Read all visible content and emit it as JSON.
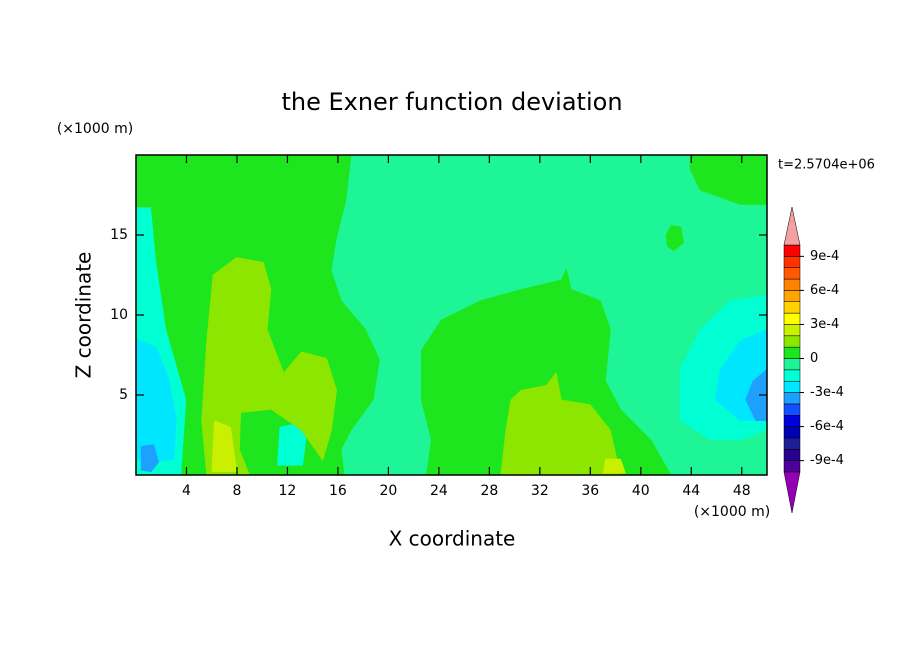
{
  "chart_data": {
    "type": "contour",
    "title": "the Exner function deviation",
    "x_label": "X coordinate",
    "y_label": "Z coordinate",
    "x_unit": "(×1000 m)",
    "y_unit": "(×1000 m)",
    "annotation": "t=2.5704e+06",
    "xlim": [
      0,
      50
    ],
    "ylim": [
      0,
      20
    ],
    "xticks": [
      4,
      8,
      12,
      16,
      20,
      24,
      28,
      32,
      36,
      40,
      44,
      48
    ],
    "yticks": [
      5,
      10,
      15
    ],
    "levels": [
      -0.001,
      -0.0009,
      -0.0008,
      -0.0007,
      -0.0006,
      -0.0005,
      -0.0004,
      -0.0003,
      -0.0002,
      -0.0001,
      0,
      0.0001,
      0.0002,
      0.0003,
      0.0004,
      0.0005,
      0.0006,
      0.0007,
      0.0008,
      0.0009,
      0.001
    ],
    "colors": [
      "#9600b4",
      "#50009a",
      "#28008c",
      "#1e1e96",
      "#0000b4",
      "#0000dc",
      "#1450ff",
      "#1ea0ff",
      "#00e6ff",
      "#00ffd2",
      "#1ef596",
      "#1ee61e",
      "#8ce600",
      "#c8f000",
      "#ffff00",
      "#ffd200",
      "#ffa500",
      "#ff8200",
      "#ff5a00",
      "#ff3200",
      "#ff0000",
      "#f4a0a0"
    ],
    "colorbar_ticks": [
      {
        "value": 0.0009,
        "label": "9e-4"
      },
      {
        "value": 0.0006,
        "label": "6e-4"
      },
      {
        "value": 0.0003,
        "label": "3e-4"
      },
      0,
      {
        "value": -0.0003,
        "label": "-3e-4"
      },
      {
        "value": -0.0006,
        "label": "-6e-4"
      },
      {
        "value": -0.0009,
        "label": "-9e-4"
      }
    ],
    "regions": [
      {
        "level": -0.0001,
        "points": [
          [
            0,
            0
          ],
          [
            50,
            0
          ],
          [
            50,
            20
          ],
          [
            0,
            20
          ]
        ]
      },
      {
        "level": -0.0002,
        "points": [
          [
            0,
            16.75
          ],
          [
            1.2,
            16.6
          ],
          [
            1.6,
            13.4
          ],
          [
            2.4,
            9.1
          ],
          [
            3.6,
            5.9
          ],
          [
            4.4,
            3.4
          ],
          [
            4.8,
            0
          ],
          [
            0,
            0
          ]
        ]
      },
      {
        "level": -0.0003,
        "points": [
          [
            0,
            8.5
          ],
          [
            1.6,
            8.0
          ],
          [
            2.6,
            6.0
          ],
          [
            3.2,
            3.5
          ],
          [
            3.0,
            1.0
          ],
          [
            1.5,
            0.8
          ],
          [
            0,
            1.0
          ]
        ]
      },
      {
        "level": -0.0004,
        "points": [
          [
            0.4,
            1.8
          ],
          [
            1.4,
            1.9
          ],
          [
            1.8,
            0.8
          ],
          [
            1.2,
            0.2
          ],
          [
            0.4,
            0.3
          ]
        ]
      },
      {
        "level": -0.0002,
        "points": [
          [
            50,
            11.25
          ],
          [
            47.1,
            10.9
          ],
          [
            44.7,
            9.1
          ],
          [
            43.1,
            6.6
          ],
          [
            43.1,
            3.4
          ],
          [
            45.5,
            2.2
          ],
          [
            47.9,
            2.2
          ],
          [
            50,
            2.8
          ]
        ]
      },
      {
        "level": -0.0003,
        "points": [
          [
            50,
            9.1
          ],
          [
            47.9,
            8.4
          ],
          [
            46.3,
            6.6
          ],
          [
            45.9,
            4.7
          ],
          [
            47.9,
            3.4
          ],
          [
            50,
            3.4
          ]
        ]
      },
      {
        "level": -0.0004,
        "points": [
          [
            50,
            6.6
          ],
          [
            48.9,
            5.9
          ],
          [
            48.3,
            4.7
          ],
          [
            49.1,
            3.4
          ],
          [
            50,
            3.4
          ]
        ]
      },
      {
        "level": 0,
        "points": [
          [
            0,
            20
          ],
          [
            17.05,
            20
          ],
          [
            16.65,
            17.2
          ],
          [
            15.86,
            14.7
          ],
          [
            15.47,
            12.8
          ],
          [
            16.26,
            10.9
          ],
          [
            18.2,
            9.1
          ],
          [
            19.3,
            7.2
          ],
          [
            18.8,
            4.7
          ],
          [
            17.05,
            2.8
          ],
          [
            16.26,
            1.6
          ],
          [
            16.5,
            0
          ],
          [
            3.6,
            0
          ],
          [
            4.0,
            4.7
          ],
          [
            2.4,
            9.1
          ],
          [
            1.6,
            13.4
          ],
          [
            1.2,
            16.75
          ],
          [
            0,
            16.75
          ]
        ]
      },
      {
        "level": 0,
        "points": [
          [
            22.6,
            7.8
          ],
          [
            24.2,
            9.7
          ],
          [
            27.3,
            10.9
          ],
          [
            30.5,
            11.6
          ],
          [
            33.7,
            12.2
          ],
          [
            34.1,
            12.9
          ],
          [
            34.5,
            11.6
          ],
          [
            36.8,
            10.9
          ],
          [
            37.6,
            9.1
          ],
          [
            37.2,
            5.9
          ],
          [
            38.4,
            4.1
          ],
          [
            40.8,
            2.2
          ],
          [
            42.4,
            0
          ],
          [
            23.0,
            0
          ],
          [
            23.4,
            2.2
          ],
          [
            22.6,
            4.7
          ]
        ]
      },
      {
        "level": 0,
        "points": [
          [
            43.9,
            20
          ],
          [
            50,
            20
          ],
          [
            50,
            16.9
          ],
          [
            47.9,
            16.9
          ],
          [
            44.7,
            17.8
          ],
          [
            43.9,
            19.1
          ]
        ]
      },
      {
        "level": 0,
        "points": [
          [
            42.0,
            15.0
          ],
          [
            42.4,
            15.6
          ],
          [
            43.2,
            15.5
          ],
          [
            43.4,
            14.5
          ],
          [
            42.6,
            14.0
          ],
          [
            42.1,
            14.3
          ]
        ]
      },
      {
        "level": -0.0001,
        "points": [
          [
            19.4,
            0
          ],
          [
            19.6,
            1.9
          ],
          [
            21.0,
            1.9
          ],
          [
            21.8,
            0
          ]
        ]
      },
      {
        "level": -0.0002,
        "points": [
          [
            11.2,
            0.6
          ],
          [
            11.4,
            3.0
          ],
          [
            12.6,
            3.2
          ],
          [
            13.5,
            2.4
          ],
          [
            13.2,
            0.6
          ]
        ]
      },
      {
        "level": 0.0001,
        "points": [
          [
            5.6,
            8.4
          ],
          [
            6.1,
            12.5
          ],
          [
            7.95,
            13.6
          ],
          [
            10.1,
            13.3
          ],
          [
            10.7,
            11.6
          ],
          [
            10.4,
            9.1
          ],
          [
            11.7,
            6.4
          ],
          [
            13.1,
            7.7
          ],
          [
            15.1,
            7.3
          ],
          [
            15.9,
            5.3
          ],
          [
            15.5,
            2.8
          ],
          [
            14.8,
            0.9
          ],
          [
            13.1,
            2.8
          ],
          [
            10.7,
            4.1
          ],
          [
            8.3,
            3.9
          ],
          [
            8.2,
            1.6
          ],
          [
            9.0,
            0
          ],
          [
            5.6,
            0
          ],
          [
            5.2,
            3.4
          ]
        ]
      },
      {
        "level": 0.0001,
        "points": [
          [
            29.7,
            4.7
          ],
          [
            30.5,
            5.3
          ],
          [
            32.5,
            5.6
          ],
          [
            33.3,
            6.4
          ],
          [
            33.7,
            4.7
          ],
          [
            36.0,
            4.4
          ],
          [
            37.6,
            2.8
          ],
          [
            38.4,
            0
          ],
          [
            28.9,
            0
          ],
          [
            29.3,
            2.8
          ]
        ]
      },
      {
        "level": 0.0002,
        "points": [
          [
            6.2,
            3.4
          ],
          [
            7.5,
            3.0
          ],
          [
            8.0,
            0.2
          ],
          [
            6.0,
            0.2
          ]
        ]
      },
      {
        "level": 0.0002,
        "points": [
          [
            37.2,
            1.0
          ],
          [
            38.4,
            1.0
          ],
          [
            38.8,
            0.1
          ],
          [
            37.0,
            0.1
          ]
        ]
      }
    ]
  }
}
